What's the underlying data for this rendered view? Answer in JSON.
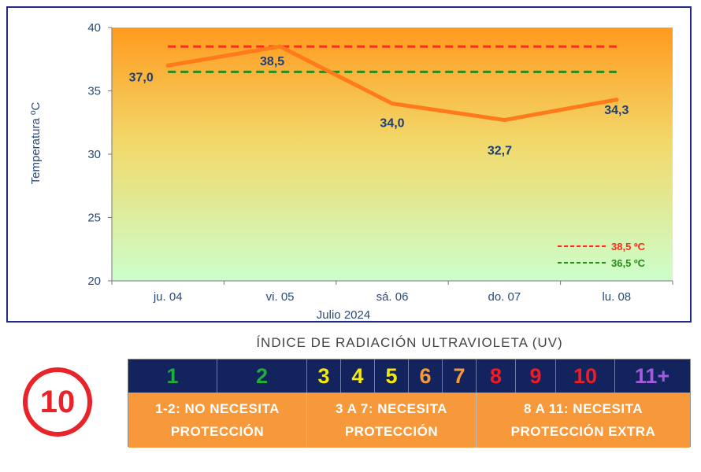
{
  "chart_data": {
    "type": "line",
    "title": "",
    "xlabel": "Julio  2024",
    "ylabel": "Temperatura ºC",
    "categories": [
      "ju. 04",
      "vi. 05",
      "sá. 06",
      "do. 07",
      "lu. 08"
    ],
    "series": [
      {
        "values": [
          37.0,
          38.5,
          34.0,
          32.7,
          34.3
        ],
        "labels": [
          "37,0",
          "38,5",
          "34,0",
          "32,7",
          "34,3"
        ],
        "color": "#ff7a1a"
      }
    ],
    "thresholds": [
      {
        "value": 38.5,
        "label": "38,5  ºC",
        "color": "#ff2a1a"
      },
      {
        "value": 36.5,
        "label": "36,5  ºC",
        "color": "#2a8a1a"
      }
    ],
    "ylim": [
      20,
      40
    ],
    "yticks": [
      "20",
      "25",
      "30",
      "35",
      "40"
    ],
    "background_gradient": [
      "#ff9a1e",
      "#ccffcc"
    ],
    "legend_position": "bottom-right",
    "grid": false
  },
  "uv": {
    "title": "ÍNDICE DE RADIACIÓN ULTRAVIOLETA (UV)",
    "current_value": "10",
    "current_color": "#e8232a",
    "scale": [
      {
        "label": "1",
        "color": "#1fae3a"
      },
      {
        "label": "2",
        "color": "#1fae3a"
      },
      {
        "label": "3",
        "color": "#f5e90a"
      },
      {
        "label": "4",
        "color": "#f5e90a"
      },
      {
        "label": "5",
        "color": "#f5e90a"
      },
      {
        "label": "6",
        "color": "#f7993a"
      },
      {
        "label": "7",
        "color": "#f7993a"
      },
      {
        "label": "8",
        "color": "#ee1c25"
      },
      {
        "label": "9",
        "color": "#ee1c25"
      },
      {
        "label": "10",
        "color": "#ee1c25"
      },
      {
        "label": "11+",
        "color": "#a35ce0"
      }
    ],
    "categories": [
      {
        "line1": "1-2: NO NECESITA",
        "line2": "PROTECCIÓN"
      },
      {
        "line1": "3 A 7: NECESITA",
        "line2": "PROTECCIÓN"
      },
      {
        "line1": "8 A 11: NECESITA",
        "line2": "PROTECCIÓN EXTRA"
      }
    ],
    "category_bg": "#f7993a",
    "header_bg": "#13235e"
  }
}
